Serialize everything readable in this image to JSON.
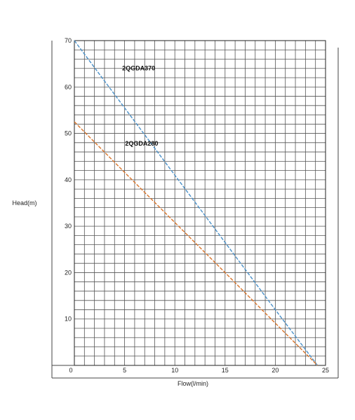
{
  "chart_data": {
    "type": "line",
    "title": "",
    "xlabel": "Flow(l/min)",
    "ylabel": "Head(m)",
    "xlim": [
      0,
      25
    ],
    "ylim": [
      0,
      70
    ],
    "x_ticks": [
      0,
      5,
      10,
      15,
      20,
      25
    ],
    "x_tick_labels": [
      "0",
      "5",
      "10",
      "15",
      "20",
      "25"
    ],
    "y_ticks": [
      10,
      20,
      30,
      40,
      50,
      60,
      70
    ],
    "y_tick_labels": [
      "10",
      "20",
      "30",
      "40",
      "50",
      "60",
      "70"
    ],
    "grid": true,
    "grid_minor_x_step": 1,
    "grid_minor_y_step": 2,
    "series": [
      {
        "name": "2QGDA370",
        "color": "#4a90c8",
        "line_style": "dashed",
        "x": [
          0,
          5,
          10,
          15,
          20,
          24.2
        ],
        "y": [
          70,
          55.5,
          41,
          26.5,
          12,
          0
        ]
      },
      {
        "name": "2QGDA280",
        "color": "#d9752b",
        "line_style": "dashed",
        "x": [
          0,
          5,
          10,
          15,
          20,
          24.2
        ],
        "y": [
          52.5,
          41.6,
          30.8,
          20,
          9.1,
          0
        ]
      }
    ]
  }
}
